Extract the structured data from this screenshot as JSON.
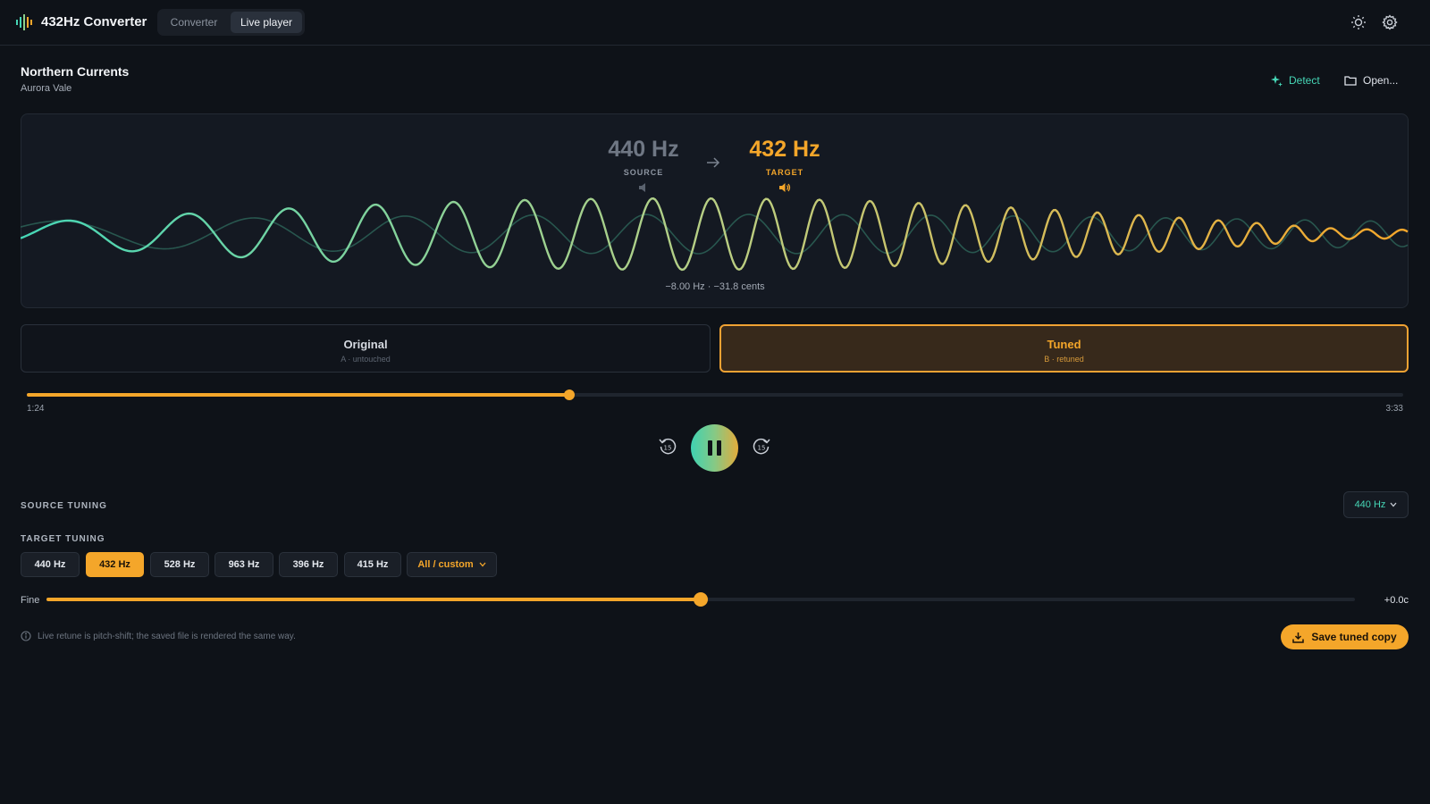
{
  "app": {
    "title": "432Hz Converter",
    "tabs": [
      {
        "label": "Converter",
        "active": false
      },
      {
        "label": "Live player",
        "active": true
      }
    ],
    "icons": [
      "sun-icon",
      "gear-icon"
    ]
  },
  "track": {
    "title": "Northern Currents",
    "artist": "Aurora Vale"
  },
  "header_actions": {
    "detect_label": "Detect",
    "open_label": "Open..."
  },
  "visualizer": {
    "source_freq": "440 Hz",
    "source_label": "SOURCE",
    "target_freq": "432 Hz",
    "target_label": "TARGET",
    "offset_text": "−8.00 Hz · −31.8 cents",
    "colors": {
      "teal": "#46d6b6",
      "amber": "#f4a62a"
    }
  },
  "ab": {
    "original_title": "Original",
    "original_sub": "A · untouched",
    "tuned_title": "Tuned",
    "tuned_sub": "B · retuned",
    "selected": "tuned"
  },
  "playback": {
    "elapsed": "1:24",
    "duration": "3:33",
    "progress_fraction": 0.394,
    "skip_seconds": "15",
    "state": "playing"
  },
  "source_tuning": {
    "label": "SOURCE TUNING",
    "selected": "440 Hz"
  },
  "target_tuning": {
    "label": "TARGET TUNING",
    "presets": [
      "440 Hz",
      "432 Hz",
      "528 Hz",
      "963 Hz",
      "396 Hz",
      "415 Hz"
    ],
    "active_index": 1,
    "custom_label": "All / custom"
  },
  "fine": {
    "label": "Fine",
    "value_text": "+0.0c",
    "fraction": 0.5
  },
  "footer": {
    "info_text": "Live retune is pitch-shift; the saved file is rendered the same way.",
    "save_label": "Save tuned copy"
  }
}
